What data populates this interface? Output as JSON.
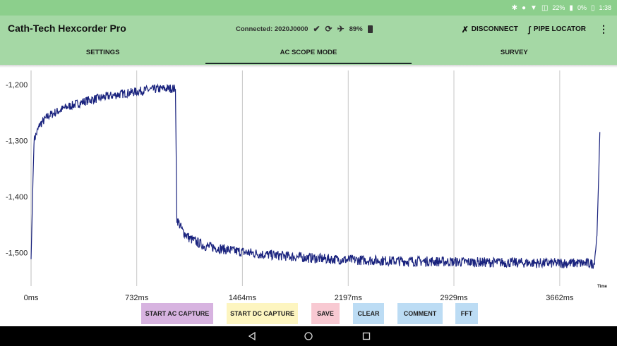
{
  "status_bar": {
    "bluetooth_icon": "bluetooth-icon",
    "sync_icon": "sync-icon",
    "wifi_icon": "wifi-icon",
    "battery_text": "22%",
    "signal_text": "0%",
    "time": "1:38"
  },
  "header": {
    "title": "Cath-Tech Hexcorder Pro",
    "connection": "Connected: 2020J0000",
    "battery": "89%",
    "disconnect_label": "DISCONNECT",
    "pipe_locator_label": "PIPE LOCATOR"
  },
  "tabs": [
    {
      "label": "SETTINGS",
      "active": false
    },
    {
      "label": "AC SCOPE MODE",
      "active": true
    },
    {
      "label": "SURVEY",
      "active": false
    }
  ],
  "chart_data": {
    "type": "line",
    "title": "",
    "xlabel": "Time",
    "ylabel": "",
    "x_ticks": [
      "0ms",
      "732ms",
      "1464ms",
      "2197ms",
      "2929ms",
      "3662ms"
    ],
    "x_tick_values": [
      0,
      732,
      1464,
      2197,
      2929,
      3662
    ],
    "y_ticks": [
      "-1,200",
      "-1,300",
      "-1,400",
      "-1,500"
    ],
    "y_tick_values": [
      -1200,
      -1300,
      -1400,
      -1500
    ],
    "xlim": [
      0,
      4000
    ],
    "ylim": [
      -1560,
      -1175
    ],
    "grid": true,
    "legend": "none",
    "color": "#1a237e",
    "series": [
      {
        "x": [
          0,
          20,
          60,
          120,
          250,
          400,
          600,
          800,
          880,
          980,
          1000,
          1010,
          1050,
          1100,
          1200,
          1400,
          1600,
          1800,
          2000,
          2200,
          2500,
          2800,
          3000,
          3300,
          3600,
          3800,
          3900,
          3920,
          3930,
          3940
        ],
        "y": [
          -1512,
          -1300,
          -1272,
          -1256,
          -1240,
          -1228,
          -1218,
          -1210,
          -1208,
          -1207,
          -1208,
          -1440,
          -1462,
          -1475,
          -1488,
          -1497,
          -1503,
          -1507,
          -1511,
          -1513,
          -1515,
          -1516,
          -1517,
          -1518,
          -1519,
          -1519,
          -1520,
          -1470,
          -1380,
          -1285
        ]
      }
    ]
  },
  "buttons": {
    "start_ac": "START AC CAPTURE",
    "start_dc": "START DC CAPTURE",
    "save": "SAVE",
    "clear": "CLEAR",
    "comment": "COMMENT",
    "fft": "FFT"
  },
  "colors": {
    "status_bar": "#8ccf8c",
    "header": "#a5d8a5",
    "trace": "#1a237e",
    "btn_ac": "#d7b3e0",
    "btn_dc": "#fdf5c0",
    "btn_save": "#f8c9d2",
    "btn_blue": "#bcdcf4"
  }
}
